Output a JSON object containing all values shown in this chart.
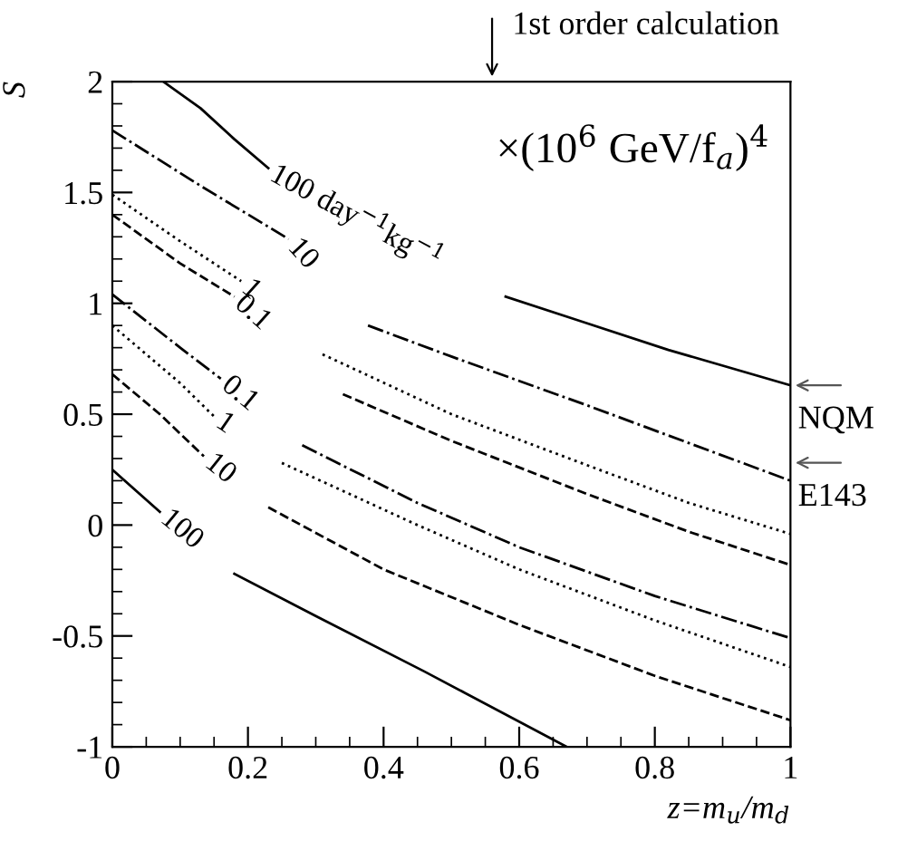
{
  "chart_data": {
    "type": "line",
    "xlabel": "z=m$_{u}$/m$_{d}$",
    "ylabel": "S",
    "xlim": [
      0,
      1
    ],
    "ylim": [
      -1,
      2
    ],
    "xticks": [
      0,
      0.2,
      0.4,
      0.6,
      0.8,
      1
    ],
    "yticks": [
      -1,
      -0.5,
      0,
      0.5,
      1,
      1.5,
      2
    ],
    "grid": false,
    "legend": false,
    "marker": "none",
    "annotations": [
      "×(10$^{6}$ GeV/f$_{a}$)$^{4}$",
      "1st order calculation",
      {
        "text": "NQM",
        "x": 1,
        "y": 0.63
      },
      "E143"
    ],
    "series": [
      {
        "name": "100 day$^{−1}$kg$^{−1}$",
        "color": "#000000",
        "line_style": "solid",
        "x": [
          0.075,
          0.13,
          0.18,
          0.23,
          0.4,
          0.58,
          0.69,
          0.82,
          1
        ],
        "values": [
          2.0,
          1.88,
          1.74,
          1.61,
          null,
          1.03,
          0.92,
          0.79,
          0.63
        ]
      },
      {
        "name": "10",
        "color": "#000000",
        "line_style": "dashdot",
        "x": [
          0,
          0.13,
          0.26,
          0.32,
          0.377,
          0.5,
          0.7,
          0.85,
          1
        ],
        "values": [
          1.78,
          1.53,
          1.29,
          null,
          0.9,
          0.76,
          0.54,
          0.37,
          0.2
        ]
      },
      {
        "name": "1",
        "color": "#000000",
        "line_style": "dotted",
        "x": [
          0,
          0.1,
          0.19,
          0.25,
          0.31,
          0.5,
          0.7,
          0.85,
          1
        ],
        "values": [
          1.49,
          1.28,
          1.1,
          null,
          0.77,
          0.5,
          0.27,
          0.1,
          -0.04
        ]
      },
      {
        "name": "0.1",
        "color": "#000000",
        "line_style": "dashed",
        "x": [
          0,
          0.1,
          0.18,
          0.26,
          0.34,
          0.5,
          0.7,
          0.85,
          1
        ],
        "values": [
          1.4,
          1.18,
          1.03,
          null,
          0.59,
          0.38,
          0.14,
          -0.03,
          -0.18
        ]
      },
      {
        "name": "0.1",
        "color": "#000000",
        "line_style": "dashdot",
        "x": [
          0,
          0.1,
          0.16,
          0.21,
          0.28,
          0.45,
          0.6,
          0.8,
          1
        ],
        "values": [
          1.04,
          0.8,
          0.66,
          null,
          0.36,
          0.1,
          -0.1,
          -0.32,
          -0.51
        ]
      },
      {
        "name": "1",
        "color": "#000000",
        "line_style": "dotted",
        "x": [
          0,
          0.1,
          0.15,
          0.2,
          0.25,
          0.45,
          0.6,
          0.8,
          1
        ],
        "values": [
          0.9,
          0.64,
          0.49,
          null,
          0.28,
          0.0,
          -0.2,
          -0.43,
          -0.64
        ]
      },
      {
        "name": "10",
        "color": "#000000",
        "line_style": "dashed",
        "x": [
          0,
          0.07,
          0.135,
          0.18,
          0.23,
          0.4,
          0.6,
          0.8,
          1
        ],
        "values": [
          0.68,
          0.5,
          0.31,
          null,
          0.08,
          -0.2,
          -0.45,
          -0.68,
          -0.88
        ]
      },
      {
        "name": "100",
        "color": "#000000",
        "line_style": "solid",
        "x": [
          0,
          0.07,
          0.12,
          0.18,
          0.3,
          0.46,
          0.67
        ],
        "values": [
          0.25,
          0.06,
          null,
          -0.22,
          -0.41,
          -0.66,
          -1.0
        ]
      }
    ]
  }
}
